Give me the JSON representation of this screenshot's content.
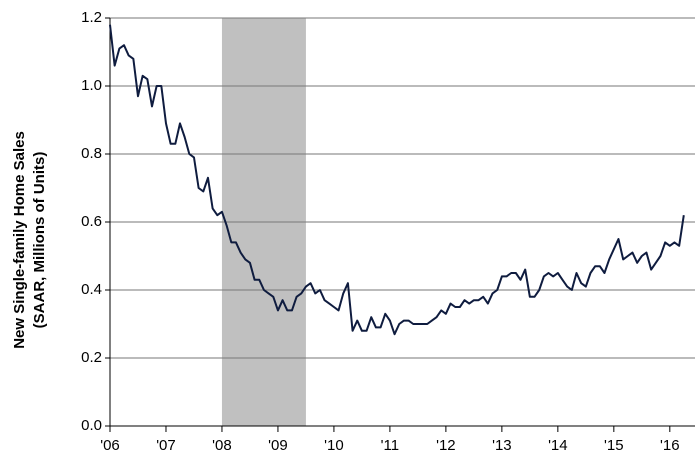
{
  "chart_data": {
    "type": "line",
    "y_label": [
      "New Single-family Home Sales",
      "(SAAR, Millions of Units)"
    ],
    "x": [
      2006,
      2006.083,
      2006.167,
      2006.25,
      2006.333,
      2006.417,
      2006.5,
      2006.583,
      2006.667,
      2006.75,
      2006.833,
      2006.917,
      2007,
      2007.083,
      2007.167,
      2007.25,
      2007.333,
      2007.417,
      2007.5,
      2007.583,
      2007.667,
      2007.75,
      2007.833,
      2007.917,
      2008,
      2008.083,
      2008.167,
      2008.25,
      2008.333,
      2008.417,
      2008.5,
      2008.583,
      2008.667,
      2008.75,
      2008.833,
      2008.917,
      2009,
      2009.083,
      2009.167,
      2009.25,
      2009.333,
      2009.417,
      2009.5,
      2009.583,
      2009.667,
      2009.75,
      2009.833,
      2009.917,
      2010,
      2010.083,
      2010.167,
      2010.25,
      2010.333,
      2010.417,
      2010.5,
      2010.583,
      2010.667,
      2010.75,
      2010.833,
      2010.917,
      2011,
      2011.083,
      2011.167,
      2011.25,
      2011.333,
      2011.417,
      2011.5,
      2011.583,
      2011.667,
      2011.75,
      2011.833,
      2011.917,
      2012,
      2012.083,
      2012.167,
      2012.25,
      2012.333,
      2012.417,
      2012.5,
      2012.583,
      2012.667,
      2012.75,
      2012.833,
      2012.917,
      2013,
      2013.083,
      2013.167,
      2013.25,
      2013.333,
      2013.417,
      2013.5,
      2013.583,
      2013.667,
      2013.75,
      2013.833,
      2013.917,
      2014,
      2014.083,
      2014.167,
      2014.25,
      2014.333,
      2014.417,
      2014.5,
      2014.583,
      2014.667,
      2014.75,
      2014.833,
      2014.917,
      2015,
      2015.083,
      2015.167,
      2015.25,
      2015.333,
      2015.417,
      2015.5,
      2015.583,
      2015.667,
      2015.75,
      2015.833,
      2015.917,
      2016,
      2016.083,
      2016.167,
      2016.25
    ],
    "series": [
      {
        "color": "#0f1c3f",
        "values": [
          1.18,
          1.06,
          1.11,
          1.12,
          1.09,
          1.08,
          0.97,
          1.03,
          1.02,
          0.94,
          1.0,
          1.0,
          0.89,
          0.83,
          0.83,
          0.89,
          0.85,
          0.8,
          0.79,
          0.7,
          0.69,
          0.73,
          0.64,
          0.62,
          0.63,
          0.59,
          0.54,
          0.54,
          0.51,
          0.49,
          0.48,
          0.43,
          0.43,
          0.4,
          0.39,
          0.38,
          0.34,
          0.37,
          0.34,
          0.34,
          0.38,
          0.39,
          0.41,
          0.42,
          0.39,
          0.4,
          0.37,
          0.36,
          0.35,
          0.34,
          0.39,
          0.42,
          0.28,
          0.31,
          0.28,
          0.28,
          0.32,
          0.29,
          0.29,
          0.33,
          0.31,
          0.27,
          0.3,
          0.31,
          0.31,
          0.3,
          0.3,
          0.3,
          0.3,
          0.31,
          0.32,
          0.34,
          0.33,
          0.36,
          0.35,
          0.35,
          0.37,
          0.36,
          0.37,
          0.37,
          0.38,
          0.36,
          0.39,
          0.4,
          0.44,
          0.44,
          0.45,
          0.45,
          0.43,
          0.46,
          0.38,
          0.38,
          0.4,
          0.44,
          0.45,
          0.44,
          0.45,
          0.43,
          0.41,
          0.4,
          0.45,
          0.42,
          0.41,
          0.45,
          0.47,
          0.47,
          0.45,
          0.49,
          0.52,
          0.55,
          0.49,
          0.5,
          0.51,
          0.48,
          0.5,
          0.51,
          0.46,
          0.48,
          0.5,
          0.54,
          0.53,
          0.54,
          0.53,
          0.62
        ]
      }
    ],
    "shaded_region": {
      "x": [
        2008,
        2009.5
      ],
      "color": "#c0c0c0"
    },
    "xlim": [
      2006,
      2016.45
    ],
    "xticks": [
      {
        "value": 2006,
        "label": "'06"
      },
      {
        "value": 2007,
        "label": "'07"
      },
      {
        "value": 2008,
        "label": "'08"
      },
      {
        "value": 2009,
        "label": "'09"
      },
      {
        "value": 2010,
        "label": "'10"
      },
      {
        "value": 2011,
        "label": "'11"
      },
      {
        "value": 2012,
        "label": "'12"
      },
      {
        "value": 2013,
        "label": "'13"
      },
      {
        "value": 2014,
        "label": "'14"
      },
      {
        "value": 2015,
        "label": "'15"
      },
      {
        "value": 2016,
        "label": "'16"
      }
    ],
    "ylim": [
      0,
      1.2
    ],
    "yticks": [
      {
        "value": 0,
        "label": "0.0"
      },
      0.2,
      0.4,
      0.6,
      0.8,
      {
        "value": 1,
        "label": "1.0"
      },
      1.2
    ],
    "grid": true
  }
}
